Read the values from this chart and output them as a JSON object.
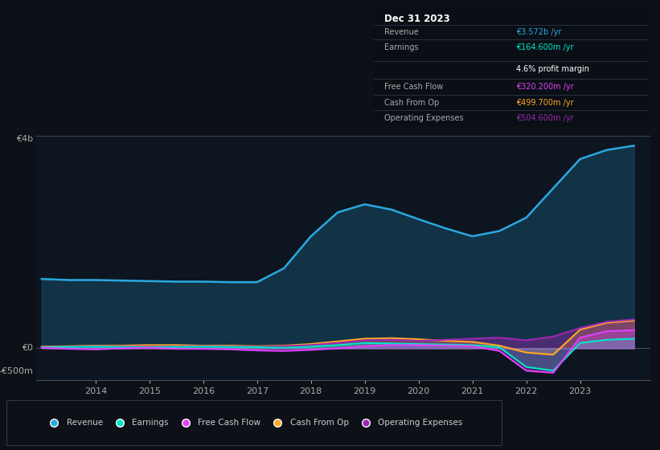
{
  "bg_color": "#0d1117",
  "plot_bg_color": "#0d1520",
  "years": [
    2013.0,
    2013.5,
    2014.0,
    2014.5,
    2015.0,
    2015.5,
    2016.0,
    2016.5,
    2017.0,
    2017.5,
    2018.0,
    2018.5,
    2019.0,
    2019.5,
    2020.0,
    2020.5,
    2021.0,
    2021.5,
    2022.0,
    2022.5,
    2023.0,
    2023.5,
    2024.0
  ],
  "revenue": [
    1.3,
    1.28,
    1.28,
    1.27,
    1.26,
    1.25,
    1.25,
    1.24,
    1.24,
    1.5,
    2.1,
    2.55,
    2.7,
    2.6,
    2.42,
    2.25,
    2.1,
    2.2,
    2.45,
    3.0,
    3.55,
    3.72,
    3.8
  ],
  "earnings": [
    0.02,
    0.025,
    0.03,
    0.025,
    0.02,
    0.025,
    0.03,
    0.025,
    0.02,
    0.01,
    0.03,
    0.06,
    0.1,
    0.09,
    0.08,
    0.07,
    0.06,
    0.02,
    -0.35,
    -0.42,
    0.1,
    0.16,
    0.18
  ],
  "free_cash_flow": [
    0.01,
    -0.01,
    -0.02,
    0.0,
    0.01,
    -0.01,
    -0.01,
    -0.02,
    -0.04,
    -0.05,
    -0.03,
    0.0,
    0.04,
    0.06,
    0.06,
    0.05,
    0.04,
    -0.05,
    -0.42,
    -0.46,
    0.2,
    0.32,
    0.34
  ],
  "cash_from_op": [
    0.03,
    0.04,
    0.05,
    0.05,
    0.06,
    0.06,
    0.05,
    0.05,
    0.04,
    0.05,
    0.08,
    0.13,
    0.18,
    0.19,
    0.17,
    0.14,
    0.12,
    0.05,
    -0.08,
    -0.12,
    0.35,
    0.48,
    0.52
  ],
  "operating_expenses": [
    0.02,
    0.03,
    0.04,
    0.035,
    0.03,
    0.035,
    0.04,
    0.035,
    0.03,
    0.04,
    0.06,
    0.1,
    0.15,
    0.16,
    0.14,
    0.16,
    0.18,
    0.2,
    0.15,
    0.22,
    0.38,
    0.5,
    0.54
  ],
  "revenue_color": "#29a8e0",
  "earnings_color": "#00e5c8",
  "free_cash_flow_color": "#e040fb",
  "cash_from_op_color": "#ffa726",
  "operating_expenses_color": "#9c27b0",
  "ylim_top": 4.0,
  "ylim_bottom": -0.6,
  "ylabel_top": "€4b",
  "ylabel_zero": "€0",
  "ylabel_bottom": "-€500m",
  "title": "Dec 31 2023",
  "info_revenue_label": "Revenue",
  "info_revenue_value": "€3.572b /yr",
  "info_earnings_label": "Earnings",
  "info_earnings_value": "€164.600m /yr",
  "info_margin": "4.6% profit margin",
  "info_fcf_label": "Free Cash Flow",
  "info_fcf_value": "€320.200m /yr",
  "info_cashop_label": "Cash From Op",
  "info_cashop_value": "€499.700m /yr",
  "info_opex_label": "Operating Expenses",
  "info_opex_value": "€504.600m /yr",
  "legend_labels": [
    "Revenue",
    "Earnings",
    "Free Cash Flow",
    "Cash From Op",
    "Operating Expenses"
  ],
  "xticks": [
    2014,
    2015,
    2016,
    2017,
    2018,
    2019,
    2020,
    2021,
    2022,
    2023
  ]
}
